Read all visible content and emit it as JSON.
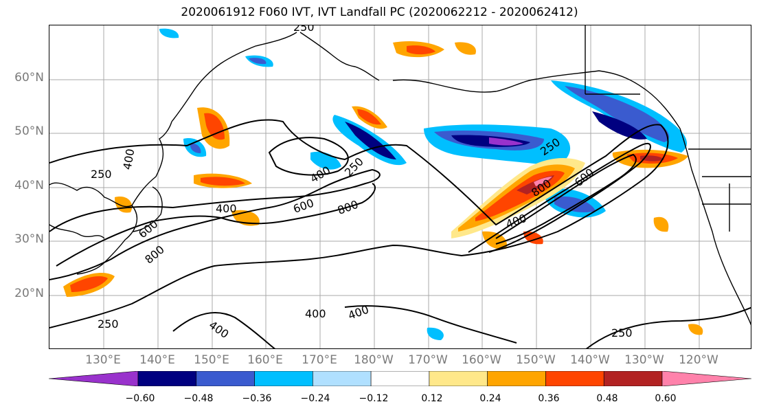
{
  "title": "2020061912 F060 IVT, IVT Landfall PC (2020062212 - 2020062412)",
  "lat_labels": [
    "60°N",
    "50°N",
    "40°N",
    "30°N",
    "20°N"
  ],
  "lon_labels": [
    "130°E",
    "140°E",
    "150°E",
    "160°E",
    "170°E",
    "180°W",
    "170°W",
    "160°W",
    "150°W",
    "140°W",
    "130°W",
    "120°W"
  ],
  "contour_labels": [
    "250",
    "250",
    "250",
    "250",
    "250",
    "250",
    "400",
    "400",
    "400",
    "400",
    "400",
    "400",
    "400",
    "600",
    "600",
    "600",
    "800",
    "800",
    "800"
  ],
  "colorbar": {
    "colors": [
      "#9932cc",
      "#000080",
      "#3a5bcf",
      "#00bfff",
      "#b0e0ff",
      "#ffffff",
      "#ffe88a",
      "#ffa500",
      "#ff4500",
      "#b22222",
      "#ff82ab"
    ],
    "tick_labels": [
      "−0.60",
      "−0.48",
      "−0.36",
      "−0.24",
      "−0.12",
      "0.12",
      "0.24",
      "0.36",
      "0.48",
      "0.60"
    ]
  },
  "colors": {
    "grid": "#a9a9a9",
    "coast": "#000000",
    "contour": "#000000"
  }
}
